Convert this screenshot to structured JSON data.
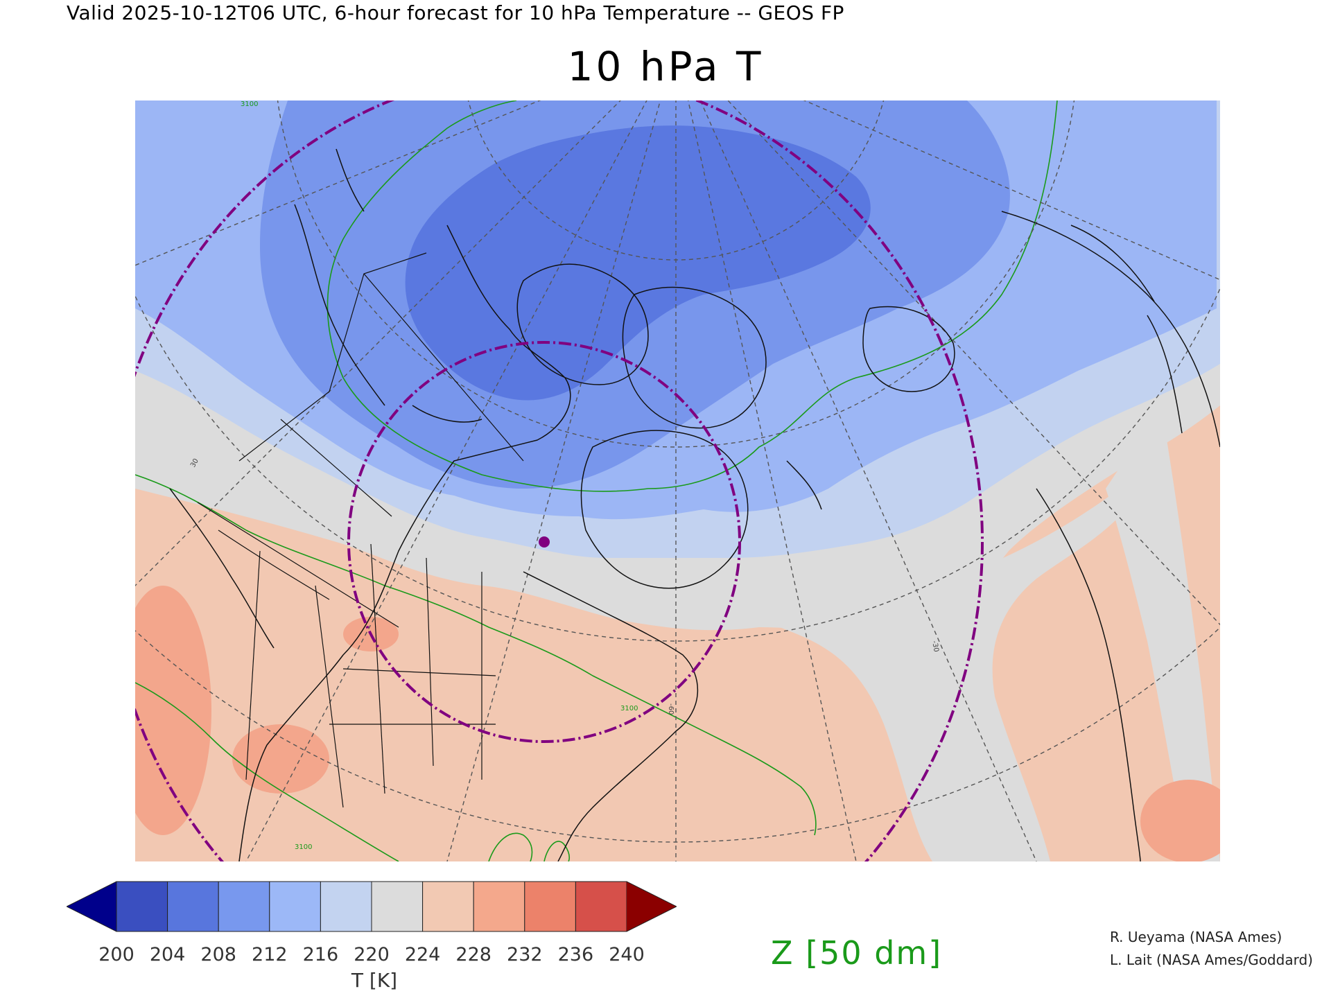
{
  "header": {
    "valid_line": "Valid 2025-10-12T06 UTC, 6-hour forecast for 10 hPa Temperature -- GEOS FP",
    "title": "10 hPa T"
  },
  "map": {
    "projection": "north-polar-stereographic",
    "region": "North America and North Atlantic",
    "fill_colors": {
      "very_cold": "#5a78e0",
      "cold": "#7896ec",
      "cool": "#9cb6f5",
      "mild": "#c2d2f0",
      "neutral": "#dcdcdc",
      "warm": "#f2c8b2",
      "warmer": "#f3a68c"
    },
    "contour_color": "#1a9a1a",
    "contour_labels": [
      "3100",
      "3100",
      "3100"
    ],
    "gridline_labels": [
      "-60",
      "-30",
      "30"
    ],
    "range_ring_color": "#800080",
    "marker_color": "#800080"
  },
  "colorbar": {
    "units_label": "T [K]",
    "ticks": [
      "200",
      "204",
      "208",
      "212",
      "216",
      "220",
      "224",
      "228",
      "232",
      "236",
      "240"
    ],
    "colors": [
      "#00008b",
      "#3a4fc0",
      "#5876dd",
      "#7898ee",
      "#9cb8f7",
      "#c3d3f0",
      "#dcdcdc",
      "#f2c9b3",
      "#f4a88c",
      "#ec826a",
      "#d6504a",
      "#8b0000"
    ]
  },
  "overlay_label": "Z [50 dm]",
  "credits": {
    "line1": "R. Ueyama (NASA Ames)",
    "line2": "L. Lait (NASA Ames/Goddard)"
  }
}
